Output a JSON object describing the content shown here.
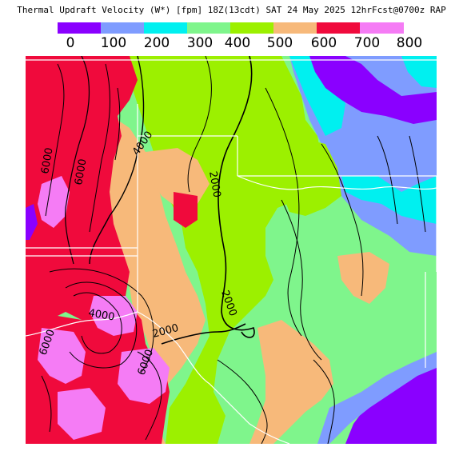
{
  "title": "Thermal Updraft Velocity (W*) [fpm] 18Z(13cdt) SAT 24 May 2025 12hrFcst@0700z RAP",
  "legend": {
    "colors": [
      "#8a00ff",
      "#7f9cff",
      "#00f0f0",
      "#7ff58c",
      "#9cf000",
      "#f7b97a",
      "#f00a3c",
      "#f57cf5"
    ],
    "ticks": [
      "0",
      "100",
      "200",
      "300",
      "400",
      "500",
      "600",
      "700",
      "800"
    ]
  },
  "contour_labels": [
    "6000",
    "6000",
    "4000",
    "2000",
    "2000",
    "4000",
    "2000",
    "6000",
    "6000"
  ]
}
